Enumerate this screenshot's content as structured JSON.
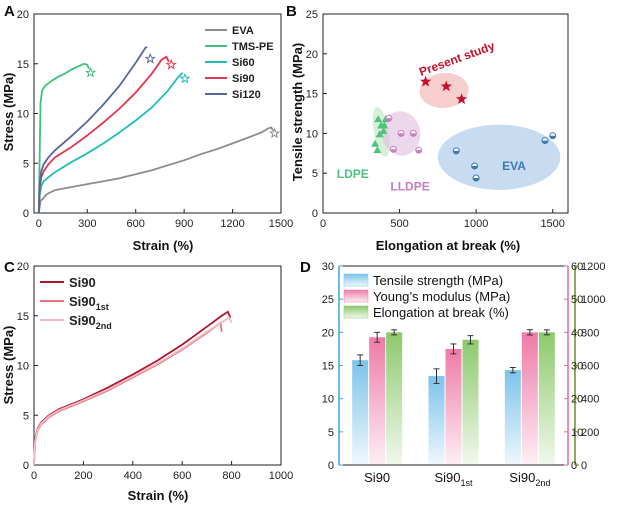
{
  "chart_data": [
    {
      "id": "A",
      "panel_label": "A",
      "type": "line",
      "xlabel": "Strain (%)",
      "ylabel": "Stress (MPa)",
      "xlim": [
        -30,
        1500
      ],
      "ylim": [
        0,
        20
      ],
      "xticks": [
        0,
        300,
        600,
        900,
        1200,
        1500
      ],
      "yticks": [
        0,
        5,
        10,
        15,
        20
      ],
      "legend_position": "top-right",
      "series": [
        {
          "name": "EVA",
          "color": "#8c8c8c",
          "x": [
            0,
            10,
            50,
            100,
            200,
            300,
            400,
            500,
            600,
            700,
            800,
            900,
            1000,
            1100,
            1200,
            1300,
            1380,
            1420,
            1440,
            1450
          ],
          "y": [
            0,
            1.2,
            1.9,
            2.3,
            2.6,
            2.9,
            3.2,
            3.5,
            3.9,
            4.3,
            4.8,
            5.3,
            5.9,
            6.4,
            7.0,
            7.6,
            8.1,
            8.5,
            8.6,
            8.3
          ],
          "end_marker": [
            1460,
            8.0
          ]
        },
        {
          "name": "TMS-PE",
          "color": "#3cc27a",
          "x": [
            0,
            5,
            10,
            20,
            40,
            80,
            120,
            160,
            200,
            240,
            280,
            300,
            310
          ],
          "y": [
            0,
            6,
            11,
            12.3,
            12.8,
            13.3,
            13.7,
            14.0,
            14.4,
            14.7,
            15.0,
            14.9,
            14.5
          ],
          "end_marker": [
            320,
            14.1
          ]
        },
        {
          "name": "Si60",
          "color": "#1fbcb8",
          "x": [
            0,
            5,
            15,
            30,
            60,
            100,
            200,
            300,
            400,
            500,
            600,
            700,
            800,
            860,
            890
          ],
          "y": [
            0,
            1.8,
            2.7,
            3.2,
            3.6,
            4.1,
            5.1,
            6.0,
            7.0,
            8.1,
            9.3,
            10.6,
            12.3,
            13.6,
            14.1
          ],
          "end_marker": [
            905,
            13.5
          ]
        },
        {
          "name": "Si90",
          "color": "#e2354f",
          "x": [
            0,
            5,
            15,
            30,
            60,
            100,
            200,
            300,
            400,
            500,
            600,
            700,
            760,
            790,
            805
          ],
          "y": [
            0,
            2.5,
            3.6,
            4.2,
            4.9,
            5.6,
            6.6,
            7.8,
            9.1,
            10.5,
            12.1,
            14.0,
            15.4,
            15.7,
            15.2
          ],
          "end_marker": [
            820,
            14.9
          ]
        },
        {
          "name": "Si120",
          "color": "#5565a0",
          "x": [
            0,
            5,
            15,
            30,
            60,
            100,
            200,
            300,
            400,
            500,
            600,
            640,
            660,
            670
          ],
          "y": [
            0,
            3.0,
            4.2,
            4.9,
            5.6,
            6.3,
            7.7,
            9.2,
            10.9,
            12.8,
            15.1,
            16.1,
            16.6,
            16.7
          ],
          "end_marker": [
            690,
            15.5
          ]
        }
      ]
    },
    {
      "id": "B",
      "panel_label": "B",
      "type": "scatter",
      "xlabel": "Elongation at break (%)",
      "ylabel": "Tensile strength (MPa)",
      "xlim": [
        0,
        1600
      ],
      "ylim": [
        0,
        25
      ],
      "xticks": [
        0,
        500,
        1000,
        1500
      ],
      "yticks": [
        0,
        5,
        10,
        15,
        20,
        25
      ],
      "groups": [
        {
          "name": "LDPE",
          "color": "#4fc27d",
          "fill": "#bfe8c4",
          "points": [
            [
              340,
              8.7
            ],
            [
              355,
              7.9
            ],
            [
              370,
              9.9
            ],
            [
              380,
              11.0
            ],
            [
              400,
              11.0
            ],
            [
              410,
              11.8
            ],
            [
              360,
              11.8
            ],
            [
              395,
              10.3
            ]
          ]
        },
        {
          "name": "LLDPE",
          "color": "#c67dbd",
          "fill": "#e4c1e0",
          "points": [
            [
              430,
              11.9
            ],
            [
              460,
              8.0
            ],
            [
              510,
              10.0
            ],
            [
              590,
              10.0
            ],
            [
              625,
              7.9
            ]
          ]
        },
        {
          "name": "EVA",
          "color": "#3f78b5",
          "fill": "#a9c8ea",
          "points": [
            [
              870,
              7.8
            ],
            [
              990,
              5.9
            ],
            [
              1000,
              4.4
            ],
            [
              1450,
              9.1
            ],
            [
              1500,
              9.7
            ]
          ]
        },
        {
          "name": "Present study",
          "color": "#c8102e",
          "fill": "#f2b3b3",
          "points": [
            [
              670,
              16.5
            ],
            [
              805,
              15.9
            ],
            [
              905,
              14.3
            ]
          ]
        }
      ]
    },
    {
      "id": "C",
      "panel_label": "C",
      "type": "line",
      "xlabel": "Strain (%)",
      "ylabel": "Stress (MPa)",
      "xlim": [
        0,
        1000
      ],
      "ylim": [
        0,
        20
      ],
      "xticks": [
        0,
        200,
        400,
        600,
        800,
        1000
      ],
      "yticks": [
        0,
        5,
        10,
        15,
        20
      ],
      "legend_position": "top-left",
      "series": [
        {
          "name": "Si90",
          "color": "#a8172e",
          "x": [
            0,
            5,
            15,
            30,
            60,
            100,
            200,
            300,
            400,
            500,
            600,
            700,
            760,
            785,
            795
          ],
          "y": [
            0,
            2.6,
            3.7,
            4.3,
            5.0,
            5.6,
            6.6,
            7.8,
            9.1,
            10.5,
            12.1,
            13.9,
            15.0,
            15.4,
            14.8
          ]
        },
        {
          "name": "Si90",
          "sub": "1st",
          "color": "#e8707f",
          "x": [
            0,
            5,
            15,
            30,
            60,
            100,
            200,
            300,
            400,
            500,
            600,
            700,
            740,
            755,
            760
          ],
          "y": [
            0,
            2.4,
            3.5,
            4.1,
            4.8,
            5.4,
            6.4,
            7.5,
            8.8,
            10.1,
            11.6,
            13.3,
            14.0,
            14.3,
            13.4
          ]
        },
        {
          "name": "Si90",
          "sub": "2nd",
          "color": "#f5b9c2",
          "x": [
            0,
            5,
            15,
            30,
            60,
            100,
            200,
            300,
            400,
            500,
            600,
            700,
            770,
            790,
            800
          ],
          "y": [
            0,
            2.5,
            3.6,
            4.2,
            4.9,
            5.5,
            6.5,
            7.6,
            8.9,
            10.2,
            11.7,
            13.4,
            14.5,
            14.8,
            14.3
          ]
        }
      ]
    },
    {
      "id": "D",
      "panel_label": "D",
      "type": "bar",
      "categories": [
        {
          "base": "Si90",
          "sub": ""
        },
        {
          "base": "Si90",
          "sub": "1st"
        },
        {
          "base": "Si90",
          "sub": "2nd"
        }
      ],
      "ylim_left": [
        0,
        30
      ],
      "yticks_left": [
        0,
        5,
        10,
        15,
        20,
        25,
        30
      ],
      "ylim_right1": [
        0,
        60
      ],
      "yticks_right1": [
        0,
        10,
        20,
        30,
        40,
        50,
        60
      ],
      "ylim_right2": [
        0,
        1200
      ],
      "yticks_right2": [
        0,
        200,
        400,
        600,
        800,
        1000,
        1200
      ],
      "legend_position": "top-left",
      "series": [
        {
          "name": "Tensile strength (MPa)",
          "axis": "left",
          "color": "#7cc3ea",
          "values": [
            15.8,
            13.4,
            14.3
          ],
          "errors": [
            0.8,
            1.1,
            0.4
          ]
        },
        {
          "name": "Young’s modulus (MPa)",
          "axis": "right1",
          "color": "#ef7aa7",
          "values": [
            38.5,
            35.0,
            40.0
          ],
          "errors": [
            1.5,
            1.5,
            0.8
          ]
        },
        {
          "name": "Elongation at break (%)",
          "axis": "right2",
          "color": "#8cc96b",
          "values": [
            800,
            755,
            800
          ],
          "errors": [
            15,
            25,
            15
          ]
        }
      ],
      "axis_colors": {
        "left": "#3aa7dd",
        "right1": "#e8699b",
        "right2": "#6b8e23"
      }
    }
  ],
  "annotations": {
    "ldpe": "LDPE",
    "lldpe": "LLDPE",
    "eva": "EVA",
    "present": "Present study"
  }
}
